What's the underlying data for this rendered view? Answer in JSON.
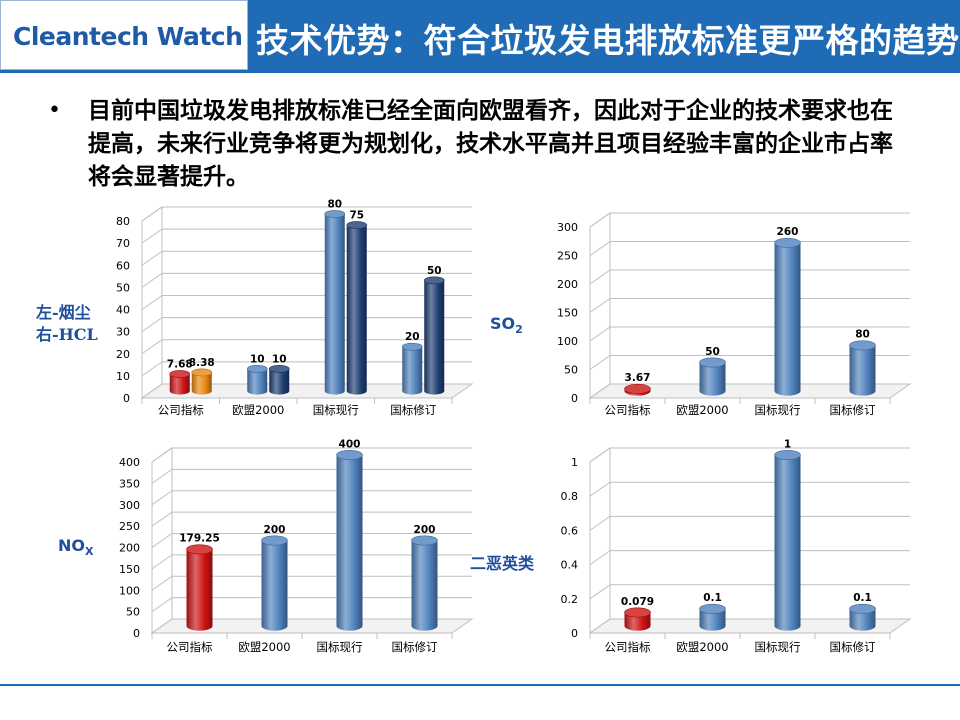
{
  "header": {
    "brand": "Cleantech Watch",
    "title": "技术优势：符合垃圾发电排放标准更严格的趋势"
  },
  "bullet": {
    "text": "目前中国垃圾发电排放标准已经全面向欧盟看齐，因此对于企业的技术要求也在提高，未来行业竞争将更为规划化，技术水平高并且项目经验丰富的企业市占率将会显著提升。"
  },
  "labels": {
    "left_top_line1": "左-烟尘",
    "left_top_line2": "右-HCL",
    "so2_main": "SO",
    "so2_sub": "2",
    "nox_main": "NO",
    "nox_sub": "X",
    "dioxin": "二恶英类"
  },
  "colors": {
    "red": "#cc1414",
    "orange": "#e8870f",
    "blue": "#4f81bd",
    "navy": "#1f3f73",
    "accent": "#1f6bb5"
  },
  "chart_data": [
    {
      "id": "dust-hcl",
      "type": "bar",
      "categories": [
        "公司指标",
        "欧盟2000",
        "国标现行",
        "国标修订"
      ],
      "series": [
        {
          "values": [
            7.68,
            10,
            80,
            20
          ],
          "labels": [
            "7.68",
            "10",
            "80",
            "20"
          ],
          "colors": [
            "#cc1414",
            "#4f81bd",
            "#4f81bd",
            "#4f81bd"
          ]
        },
        {
          "values": [
            8.38,
            10,
            75,
            50
          ],
          "labels": [
            "8.38",
            "10",
            "75",
            "50"
          ],
          "colors": [
            "#e8870f",
            "#1f3f73",
            "#1f3f73",
            "#1f3f73"
          ]
        }
      ],
      "ylim": [
        0,
        80
      ],
      "yticks": [
        "0",
        "10",
        "20",
        "30",
        "40",
        "50",
        "60",
        "70",
        "80"
      ],
      "grid": true
    },
    {
      "id": "so2",
      "type": "bar",
      "categories": [
        "公司指标",
        "欧盟2000",
        "国标现行",
        "国标修订"
      ],
      "series": [
        {
          "values": [
            3.67,
            50,
            260,
            80
          ],
          "labels": [
            "3.67",
            "50",
            "260",
            "80"
          ],
          "colors": [
            "#cc1414",
            "#4f81bd",
            "#4f81bd",
            "#4f81bd"
          ]
        }
      ],
      "ylim": [
        0,
        300
      ],
      "yticks": [
        "0",
        "50",
        "100",
        "150",
        "200",
        "250",
        "300"
      ],
      "grid": true
    },
    {
      "id": "nox",
      "type": "bar",
      "categories": [
        "公司指标",
        "欧盟2000",
        "国标现行",
        "国标修订"
      ],
      "series": [
        {
          "values": [
            179.25,
            200,
            400,
            200
          ],
          "labels": [
            "179.25",
            "200",
            "400",
            "200"
          ],
          "colors": [
            "#cc1414",
            "#4f81bd",
            "#4f81bd",
            "#4f81bd"
          ]
        }
      ],
      "ylim": [
        0,
        400
      ],
      "yticks": [
        "0",
        "50",
        "100",
        "150",
        "200",
        "250",
        "300",
        "350",
        "400"
      ],
      "grid": true
    },
    {
      "id": "dioxin",
      "type": "bar",
      "categories": [
        "公司指标",
        "欧盟2000",
        "国标现行",
        "国标修订"
      ],
      "series": [
        {
          "values": [
            0.079,
            0.1,
            1,
            0.1
          ],
          "labels": [
            "0.079",
            "0.1",
            "1",
            "0.1"
          ],
          "colors": [
            "#cc1414",
            "#4f81bd",
            "#4f81bd",
            "#4f81bd"
          ]
        }
      ],
      "ylim": [
        0,
        1
      ],
      "yticks": [
        "0",
        "0.2",
        "0.4",
        "0.6",
        "0.8",
        "1"
      ],
      "grid": true
    }
  ]
}
